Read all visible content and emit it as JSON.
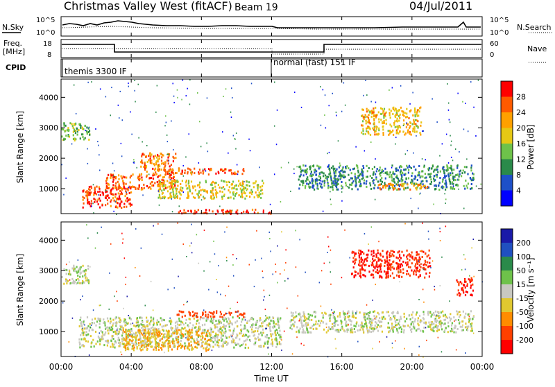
{
  "header": {
    "title": "Christmas Valley West (fitACF)",
    "beam": "Beam 19",
    "date": "04/Jul/2011"
  },
  "left_labels": {
    "nsky": "N.Sky",
    "freq_line1": "Freq.",
    "freq_line2": "[MHz]",
    "cpid": "CPID"
  },
  "right_labels": {
    "nsearch": "N.Search",
    "nave": "Nave"
  },
  "noise_panel": {
    "left_ticks": [
      "10^5",
      "10^0"
    ],
    "right_ticks": [
      "10^5",
      "10^0"
    ]
  },
  "freq_panel": {
    "left_ticks": [
      "18",
      "8"
    ],
    "right_ticks": [
      "60",
      "0"
    ]
  },
  "cpid_panel": {
    "segments": [
      {
        "label": "themis 3300 IF",
        "start_hour": 0
      },
      {
        "label": "normal (fast) 151 IF",
        "start_hour": 12
      }
    ]
  },
  "x_axis": {
    "label": "Time UT",
    "tick_labels": [
      "00:00",
      "04:00",
      "08:00",
      "12:00",
      "16:00",
      "20:00",
      "00:00"
    ],
    "range_hours": [
      0,
      24
    ]
  },
  "power_panel": {
    "ylabel": "Slant Range [km]",
    "yticks": [
      "1000",
      "2000",
      "3000",
      "4000"
    ],
    "colorbar_label": "Power [dB]",
    "colorbar_ticks": [
      "4",
      "8",
      "12",
      "16",
      "20",
      "24",
      "28"
    ],
    "colorbar_colors": [
      "#0000ff",
      "#1e50c8",
      "#2a8a4a",
      "#6ec24a",
      "#e6c814",
      "#ffa000",
      "#ff5a00",
      "#ff0000"
    ]
  },
  "velocity_panel": {
    "ylabel": "Slant Range [km]",
    "yticks": [
      "1000",
      "2000",
      "3000",
      "4000"
    ],
    "colorbar_label": "Velocity [m s⁻¹]",
    "colorbar_ticks": [
      "200",
      "100",
      "50",
      "15",
      "-15",
      "-50",
      "-100",
      "-200"
    ],
    "colorbar_colors": [
      "#1a1aa8",
      "#2050c0",
      "#2a8a4a",
      "#6ec24a",
      "#c8c8c0",
      "#e0c830",
      "#ff8c00",
      "#ff4000",
      "#ff0000"
    ]
  },
  "chart_data": {
    "type": "heatmap",
    "title": "Christmas Valley West (fitACF)",
    "xlabel": "Time UT",
    "ylabel": "Slant Range [km]",
    "xlim": [
      0,
      24
    ],
    "ylim": [
      180,
      4600
    ],
    "series": [
      {
        "name": "Power",
        "units": "dB",
        "regions": [
          {
            "t0": 0.0,
            "t1": 1.6,
            "r0": 2600,
            "r1": 3200,
            "value": 14
          },
          {
            "t0": 1.2,
            "t1": 4.0,
            "r0": 400,
            "r1": 1100,
            "value": 28
          },
          {
            "t0": 2.5,
            "t1": 6.5,
            "r0": 1000,
            "r1": 1500,
            "value": 26
          },
          {
            "t0": 4.5,
            "t1": 6.5,
            "r0": 1500,
            "r1": 2200,
            "value": 24
          },
          {
            "t0": 5.5,
            "t1": 11.5,
            "r0": 700,
            "r1": 1300,
            "value": 18
          },
          {
            "t0": 6.0,
            "t1": 10.5,
            "r0": 1500,
            "r1": 1700,
            "value": 26
          },
          {
            "t0": 6.5,
            "t1": 12.0,
            "r0": 200,
            "r1": 350,
            "value": 28
          },
          {
            "t0": 13.5,
            "t1": 23.5,
            "r0": 1000,
            "r1": 1800,
            "value": 10
          },
          {
            "t0": 17.0,
            "t1": 20.5,
            "r0": 2800,
            "r1": 3700,
            "value": 20
          },
          {
            "t0": 18.0,
            "t1": 21.0,
            "r0": 1000,
            "r1": 1200,
            "value": 22
          }
        ]
      },
      {
        "name": "Velocity",
        "units": "m s-1",
        "regions": [
          {
            "t0": 0.0,
            "t1": 1.6,
            "r0": 2600,
            "r1": 3200,
            "value": 0
          },
          {
            "t0": 1.0,
            "t1": 12.5,
            "r0": 500,
            "r1": 1500,
            "value": 0
          },
          {
            "t0": 3.5,
            "t1": 8.5,
            "r0": 400,
            "r1": 1100,
            "value": -50
          },
          {
            "t0": 6.5,
            "t1": 10.5,
            "r0": 1500,
            "r1": 1700,
            "value": -150
          },
          {
            "t0": 13.0,
            "t1": 23.5,
            "r0": 1000,
            "r1": 1700,
            "value": 0
          },
          {
            "t0": 16.5,
            "t1": 21.0,
            "r0": 2800,
            "r1": 3700,
            "value": -200
          },
          {
            "t0": 22.5,
            "t1": 23.5,
            "r0": 2200,
            "r1": 2800,
            "value": -200
          }
        ]
      }
    ]
  }
}
